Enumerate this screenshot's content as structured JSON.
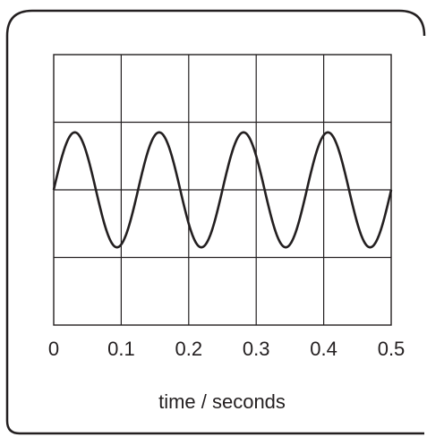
{
  "chart_data": {
    "type": "line",
    "xlabel": "time / seconds",
    "ylabel": "",
    "title": "",
    "xlim": [
      0,
      0.5
    ],
    "x_tick_labels": [
      "0",
      "0.1",
      "0.2",
      "0.3",
      "0.4",
      "0.5"
    ],
    "x_ticks": [
      0,
      0.1,
      0.2,
      0.3,
      0.4,
      0.5
    ],
    "grid": true,
    "grid_divisions": {
      "x": 5,
      "y": 4
    },
    "y_divisions_range": [
      -2,
      2
    ],
    "series": [
      {
        "waveform": "sine",
        "amplitude_divisions": 0.85,
        "period_seconds": 0.125,
        "cycles": 4,
        "phase": "starts at zero, rising"
      }
    ],
    "colors": {
      "line": "#231f20",
      "grid": "#231f20",
      "frame": "#231f20"
    }
  }
}
